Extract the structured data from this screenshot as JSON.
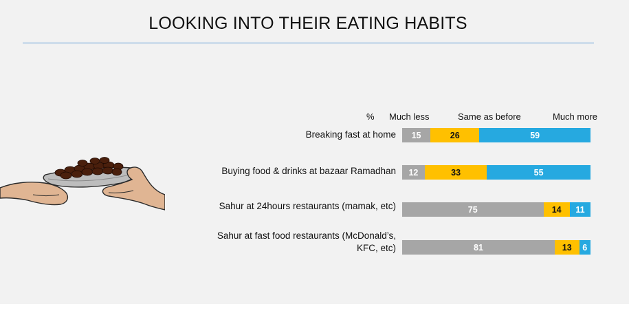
{
  "title": "LOOKING INTO THEIR EATING HABITS",
  "colors": {
    "much_less": "#a6a6a6",
    "same_as_before": "#ffc000",
    "much_more": "#26a9e0",
    "title_rule": "#5b9bd5",
    "background": "#f2f2f2"
  },
  "illustration": "hands-passing-plate-of-dates",
  "chart_data": {
    "type": "bar",
    "orientation": "horizontal",
    "stacked": true,
    "unit_label": "%",
    "categories": [
      "Breaking fast at home",
      "Buying food & drinks at bazaar Ramadhan",
      "Sahur at 24hours restaurants (mamak,  etc)",
      "Sahur at fast food restaurants (McDonald’s,\nKFC, etc)"
    ],
    "series": [
      {
        "name": "Much less",
        "values": [
          15,
          12,
          75,
          81
        ]
      },
      {
        "name": "Same as before",
        "values": [
          26,
          33,
          14,
          13
        ]
      },
      {
        "name": "Much more",
        "values": [
          59,
          55,
          11,
          6
        ]
      }
    ],
    "xlim": [
      0,
      100
    ],
    "legend": "top",
    "grid": false
  }
}
